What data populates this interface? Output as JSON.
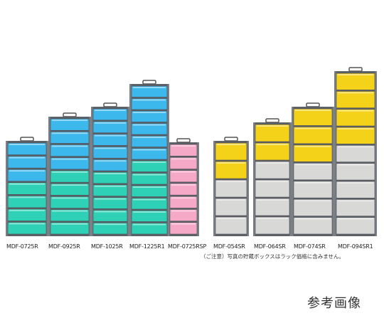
{
  "racks": [
    {
      "label": "MDF-0725R",
      "color": "mixed-blue-teal"
    },
    {
      "label": "MDF-0925R",
      "color": "mixed-blue-teal"
    },
    {
      "label": "MDF-1025R",
      "color": "mixed-blue-teal"
    },
    {
      "label": "MDF-1225R1",
      "color": "mixed-blue-teal"
    },
    {
      "label": "MDF-0725RSP",
      "color": "pink"
    },
    {
      "label": "MDF-054SR",
      "color": "mixed-yellow-gray"
    },
    {
      "label": "MDF-064SR",
      "color": "mixed-yellow-gray"
    },
    {
      "label": "MDF-074SR",
      "color": "mixed-yellow-gray"
    },
    {
      "label": "MDF-094SR1",
      "color": "mixed-yellow-gray"
    }
  ],
  "note": "（ご注意）写真の貯蔵ボックスはラック価格に含みません。",
  "reference": "参考画像",
  "colors": {
    "blue": "#3cb8ec",
    "teal": "#2ed1b6",
    "pink": "#f6a9c6",
    "yellow": "#f4d21a",
    "gray": "#d8d8d6",
    "frame": "#7b7f86"
  }
}
